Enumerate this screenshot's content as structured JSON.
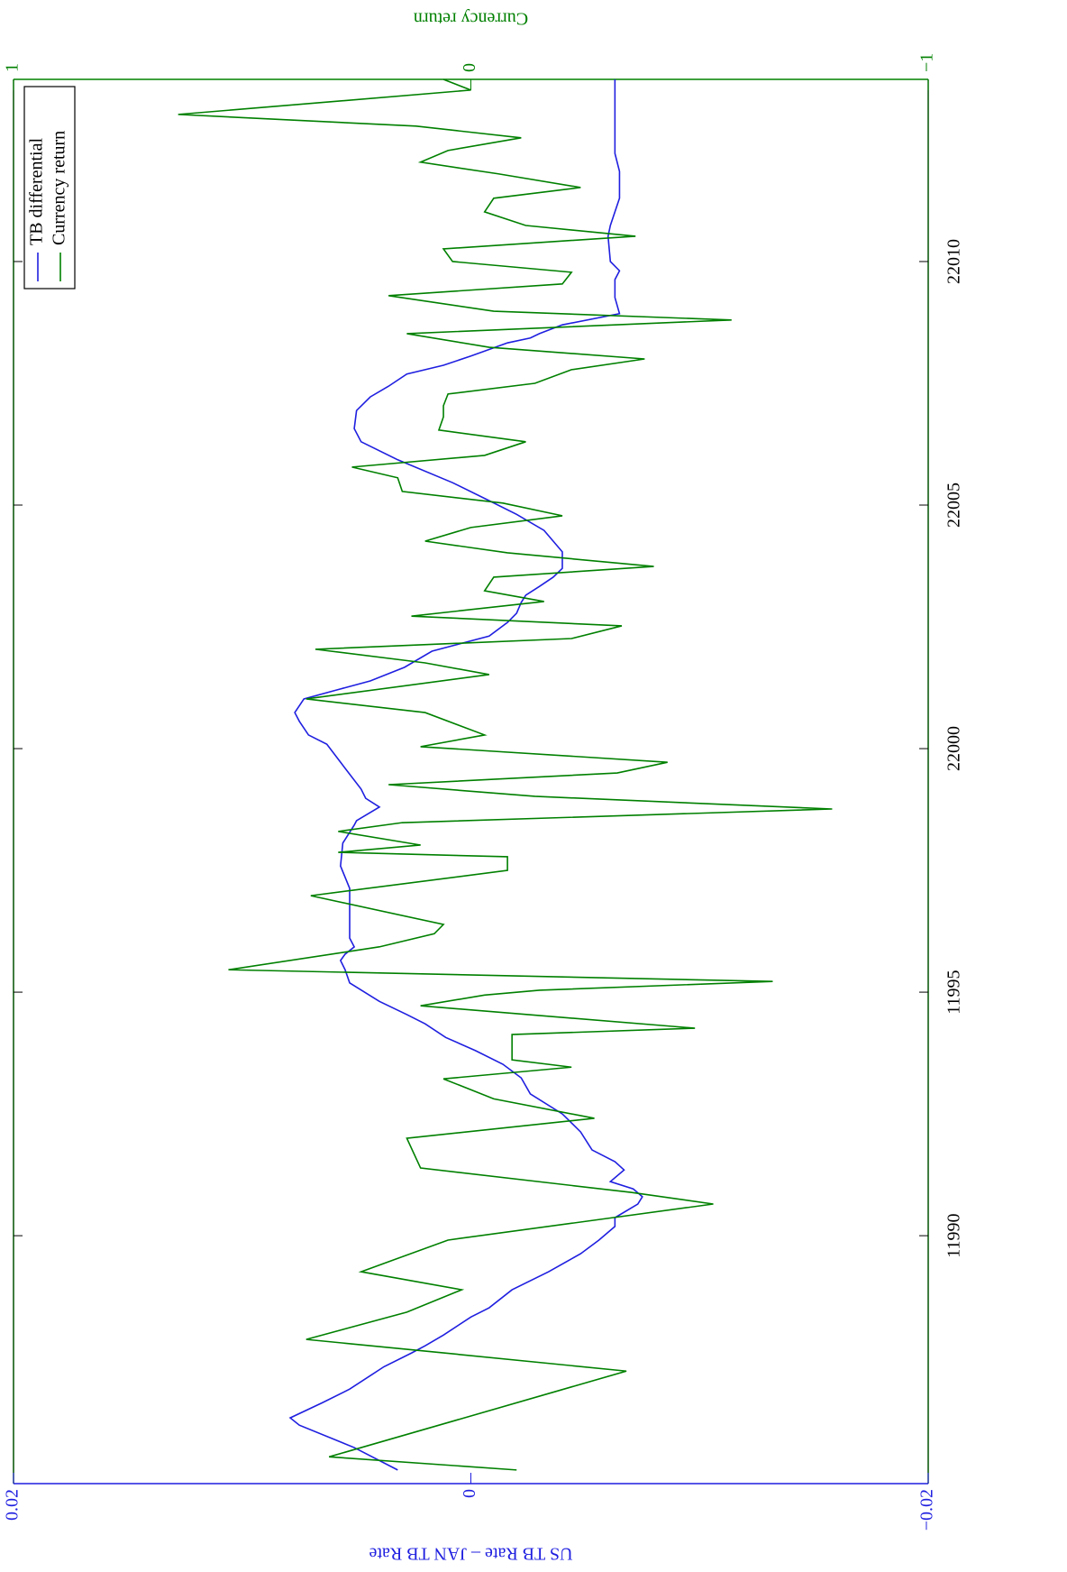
{
  "chart_data": {
    "type": "line",
    "ylabel": "US TB Rate – JAN TB Rate",
    "y2label": "Currency return",
    "xlim": [
      1984.91,
      2013.74
    ],
    "xticks": [
      {
        "value": 1990,
        "label": "11990"
      },
      {
        "value": 1995,
        "label": "11995"
      },
      {
        "value": 2000,
        "label": "22000"
      },
      {
        "value": 2005,
        "label": "22005"
      },
      {
        "value": 2010,
        "label": "22010"
      }
    ],
    "ylim": [
      -0.02,
      0.02
    ],
    "yticks": [
      {
        "value": -0.02,
        "label": "−0.02"
      },
      0,
      0.02
    ],
    "y2lim": [
      -1,
      1
    ],
    "y2ticks": [
      {
        "value": -1,
        "label": "−1"
      },
      0,
      1
    ],
    "legend": "upper right",
    "series": [
      {
        "name": "TB differential",
        "color": "#1f1fe0",
        "x": [
          1985.19,
          1985.65,
          1986.11,
          1986.26,
          1986.57,
          1986.85,
          1987.31,
          1987.59,
          1987.74,
          1987.96,
          1988.33,
          1988.52,
          1988.89,
          1989.26,
          1989.63,
          1989.91,
          1990.19,
          1990.37,
          1990.65,
          1990.8,
          1990.96,
          1991.11,
          1991.35,
          1991.52,
          1991.76,
          1992.13,
          1992.5,
          1992.91,
          1993.24,
          1993.52,
          1993.8,
          1994.07,
          1994.35,
          1994.54,
          1994.81,
          1995.19,
          1995.46,
          1995.65,
          1995.78,
          1995.93,
          1996.11,
          1996.3,
          1996.57,
          1996.94,
          1997.13,
          1997.59,
          1998.06,
          1998.43,
          1998.52,
          1998.8,
          1998.98,
          1999.17,
          1999.72,
          2000.09,
          2000.28,
          2000.56,
          2000.74,
          2001.02,
          2001.2,
          2001.39,
          2001.67,
          2002.0,
          2002.31,
          2002.59,
          2002.78,
          2003.0,
          2003.15,
          2003.33,
          2003.52,
          2003.7,
          2004.04,
          2004.26,
          2004.48,
          2004.81,
          2005.09,
          2005.46,
          2005.93,
          2006.3,
          2006.57,
          2006.94,
          2007.22,
          2007.44,
          2007.69,
          2007.87,
          2008.06,
          2008.33,
          2008.43,
          2008.52,
          2008.7,
          2008.93,
          2009.26,
          2009.63,
          2009.81,
          2010.0,
          2010.52,
          2010.74,
          2011.02,
          2011.3,
          2011.85,
          2012.22,
          2012.59,
          2012.96,
          2013.52,
          2013.74
        ],
        "values": [
          0.0032,
          0.0051,
          0.0075,
          0.0079,
          0.0065,
          0.0053,
          0.0038,
          0.0026,
          0.002,
          0.0012,
          0,
          -0.0008,
          -0.0018,
          -0.0034,
          -0.0048,
          -0.0056,
          -0.0063,
          -0.0063,
          -0.0073,
          -0.0075,
          -0.0071,
          -0.0061,
          -0.0067,
          -0.0063,
          -0.0053,
          -0.0048,
          -0.004,
          -0.0026,
          -0.0022,
          -0.0014,
          -0.0002,
          0.0011,
          0.002,
          0.0028,
          0.004,
          0.0053,
          0.0055,
          0.0057,
          0.0055,
          0.0051,
          0.0053,
          0.0053,
          0.0053,
          0.0053,
          0.0053,
          0.0057,
          0.0056,
          0.0051,
          0.005,
          0.004,
          0.0046,
          0.0048,
          0.0057,
          0.0063,
          0.0071,
          0.0075,
          0.0077,
          0.0073,
          0.0059,
          0.0044,
          0.0029,
          0.0017,
          -0.0008,
          -0.0016,
          -0.002,
          -0.0022,
          -0.0024,
          -0.003,
          -0.0036,
          -0.004,
          -0.004,
          -0.0036,
          -0.0032,
          -0.002,
          -0.0008,
          0.0008,
          0.0032,
          0.0048,
          0.0051,
          0.005,
          0.0044,
          0.0036,
          0.0028,
          0.0012,
          0,
          -0.0016,
          -0.0026,
          -0.003,
          -0.004,
          -0.0065,
          -0.0063,
          -0.0063,
          -0.0065,
          -0.0061,
          -0.006,
          -0.0061,
          -0.0063,
          -0.0065,
          -0.0065,
          -0.0063,
          -0.0063,
          -0.0063,
          -0.0063,
          -0.0063
        ]
      },
      {
        "name": "Currency return",
        "color": "#008000",
        "axis": "y2",
        "x": [
          1985.19,
          1985.46,
          1987.22,
          1987.65,
          1987.87,
          1988.43,
          1988.89,
          1989.26,
          1989.91,
          1990.65,
          1990.89,
          1991.39,
          1992.0,
          1992.41,
          1992.81,
          1993.22,
          1993.46,
          1993.61,
          1994.13,
          1994.26,
          1994.72,
          1994.94,
          1995.04,
          1995.22,
          1995.46,
          1995.93,
          1996.2,
          1996.39,
          1996.98,
          1997.5,
          1997.78,
          1997.87,
          1998.02,
          1998.3,
          1998.48,
          1998.76,
          1999.02,
          1999.26,
          1999.5,
          1999.72,
          2000.04,
          2000.28,
          2000.74,
          2001.02,
          2001.52,
          2001.76,
          2002.04,
          2002.26,
          2002.52,
          2002.72,
          2003.02,
          2003.24,
          2003.52,
          2003.74,
          2004.02,
          2004.26,
          2004.54,
          2004.78,
          2005.04,
          2005.28,
          2005.56,
          2005.78,
          2006.02,
          2006.3,
          2006.54,
          2006.81,
          2007.04,
          2007.28,
          2007.5,
          2007.78,
          2008.0,
          2008.24,
          2008.52,
          2008.8,
          2008.98,
          2009.3,
          2009.54,
          2009.78,
          2010.0,
          2010.26,
          2010.52,
          2010.74,
          2011.02,
          2011.3,
          2011.52,
          2011.8,
          2012.04,
          2012.28,
          2012.54,
          2012.78,
          2013.02,
          2013.52,
          2013.74
        ],
        "values": [
          -0.1,
          0.31,
          -0.34,
          0.12,
          0.36,
          0.14,
          0.02,
          0.24,
          0.05,
          -0.53,
          -0.35,
          0.11,
          0.14,
          -0.27,
          -0.05,
          0.06,
          -0.22,
          -0.09,
          -0.09,
          -0.49,
          0.11,
          -0.03,
          -0.15,
          -0.66,
          0.53,
          0.2,
          0.08,
          0.06,
          0.35,
          -0.08,
          -0.08,
          0.29,
          0.11,
          0.29,
          0.15,
          -0.79,
          -0.14,
          0.18,
          -0.32,
          -0.43,
          0.11,
          -0.03,
          0.1,
          0.36,
          -0.04,
          0.1,
          0.34,
          -0.22,
          -0.33,
          0.13,
          -0.16,
          -0.03,
          -0.05,
          -0.4,
          -0.08,
          0.1,
          0.0,
          -0.2,
          -0.07,
          0.15,
          0.16,
          0.26,
          -0.03,
          -0.12,
          0.07,
          0.06,
          0.06,
          0.05,
          -0.14,
          -0.22,
          -0.38,
          -0.04,
          0.14,
          -0.57,
          -0.05,
          0.18,
          -0.2,
          -0.22,
          0.04,
          0.06,
          -0.36,
          -0.12,
          -0.03,
          -0.05,
          -0.24,
          -0.06,
          0.11,
          0.05,
          -0.11,
          0.12,
          0.64,
          0.0,
          0.06
        ]
      }
    ]
  }
}
